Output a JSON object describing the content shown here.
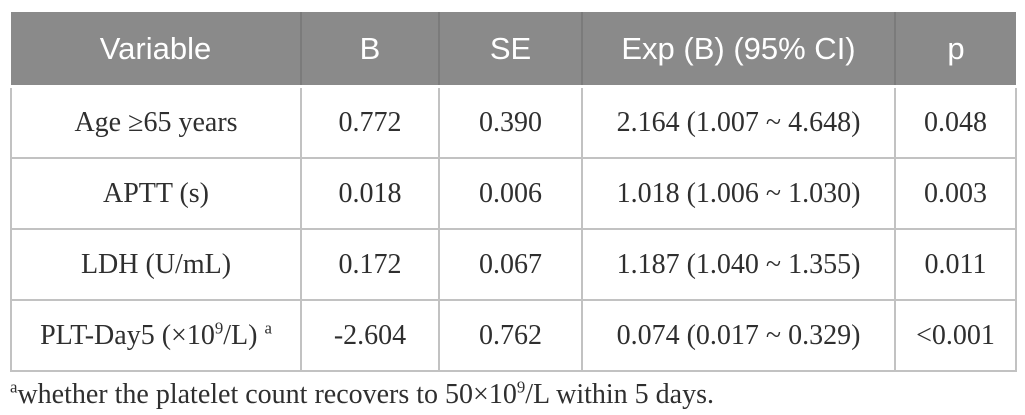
{
  "colors": {
    "header_bg": "#8a8a8a",
    "header_text": "#ffffff",
    "header_divider": "#7b7b7b",
    "body_text": "#2f2f2f",
    "border": "#c2c2c2"
  },
  "table": {
    "headers": [
      "Variable",
      "B",
      "SE",
      "Exp (B) (95% CI)",
      "p"
    ],
    "rows": [
      {
        "cells": [
          [
            {
              "t": "Age ≥65 years"
            }
          ],
          [
            {
              "t": "0.772"
            }
          ],
          [
            {
              "t": "0.390"
            }
          ],
          [
            {
              "t": "2.164 (1.007 ~ 4.648)"
            }
          ],
          [
            {
              "t": "0.048"
            }
          ]
        ]
      },
      {
        "cells": [
          [
            {
              "t": "APTT (s)"
            }
          ],
          [
            {
              "t": "0.018"
            }
          ],
          [
            {
              "t": "0.006"
            }
          ],
          [
            {
              "t": "1.018 (1.006 ~ 1.030)"
            }
          ],
          [
            {
              "t": "0.003"
            }
          ]
        ]
      },
      {
        "cells": [
          [
            {
              "t": "LDH (U/mL)"
            }
          ],
          [
            {
              "t": "0.172"
            }
          ],
          [
            {
              "t": "0.067"
            }
          ],
          [
            {
              "t": "1.187 (1.040 ~ 1.355)"
            }
          ],
          [
            {
              "t": "0.011"
            }
          ]
        ]
      },
      {
        "cells": [
          [
            {
              "t": "PLT-Day5 (×10"
            },
            {
              "t": "9",
              "sup": true
            },
            {
              "t": "/L) "
            },
            {
              "t": "a",
              "sup": true
            }
          ],
          [
            {
              "t": "-2.604"
            }
          ],
          [
            {
              "t": "0.762"
            }
          ],
          [
            {
              "t": "0.074 (0.017 ~ 0.329)"
            }
          ],
          [
            {
              "t": "<0.001"
            }
          ]
        ]
      }
    ],
    "footnote": [
      {
        "t": "a",
        "sup": true
      },
      {
        "t": "whether the platelet count recovers to 50×10"
      },
      {
        "t": "9",
        "sup": true
      },
      {
        "t": "/L within 5 days."
      }
    ]
  }
}
